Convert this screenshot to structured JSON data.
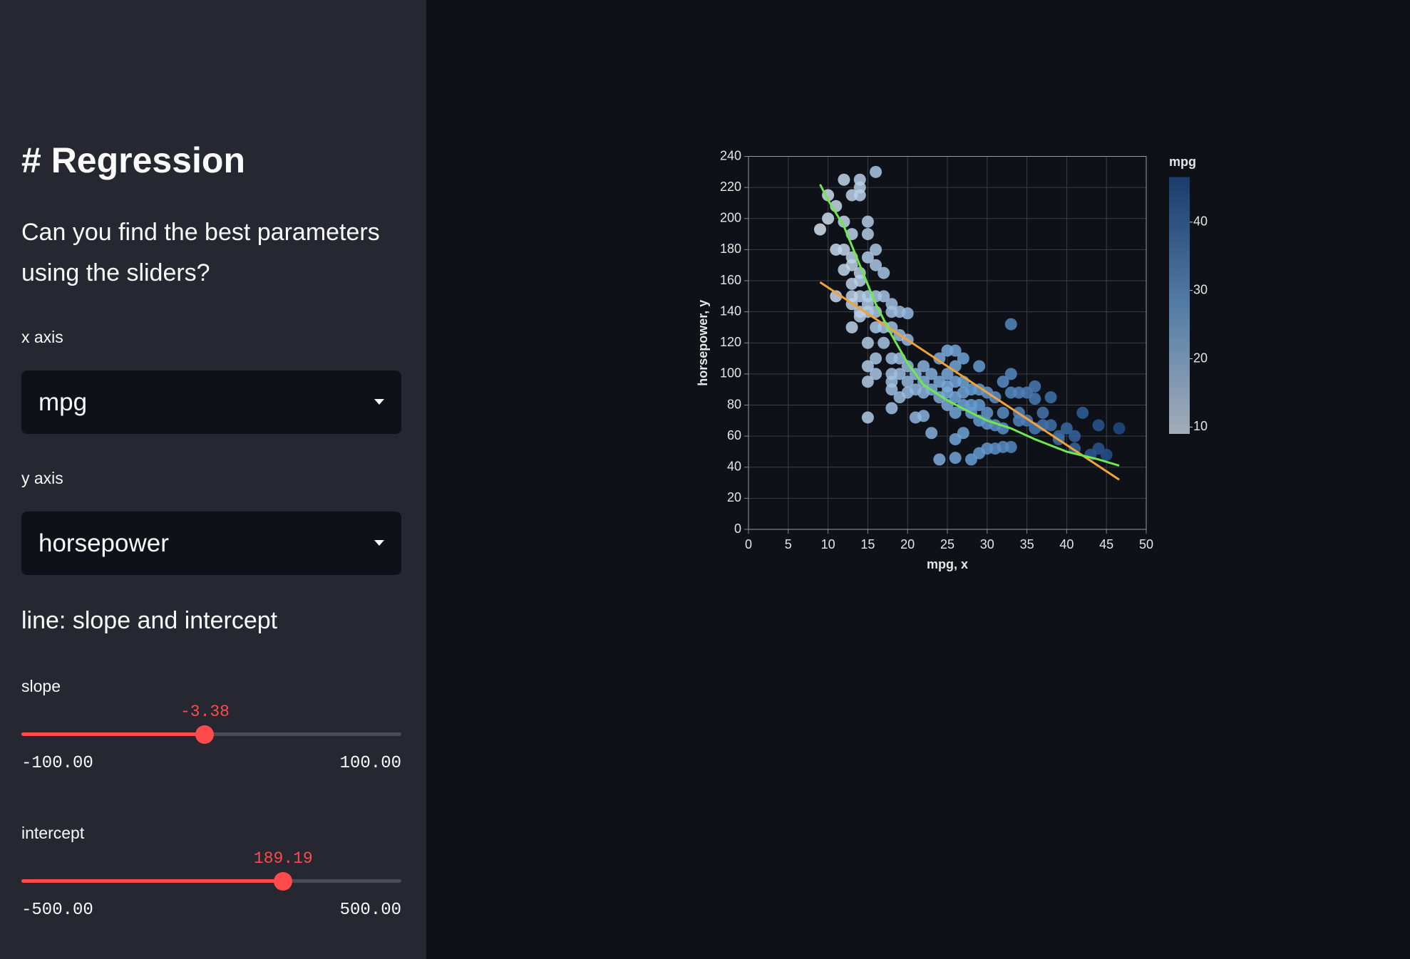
{
  "sidebar": {
    "title": "# Regression",
    "text": "Can you find the best parameters using the sliders?",
    "selects": [
      {
        "label": "x axis",
        "value": "mpg"
      },
      {
        "label": "y axis",
        "value": "horsepower"
      }
    ],
    "section": "line: slope and intercept",
    "sliders": [
      {
        "label": "slope",
        "value": -3.38,
        "min": {
          "value": -100,
          "label": "-100.00"
        },
        "max": {
          "value": 100,
          "label": "100.00"
        }
      },
      {
        "label": "intercept",
        "value": 189.19,
        "min": {
          "value": -500,
          "label": "-500.00"
        },
        "max": {
          "value": 500,
          "label": "500.00"
        }
      }
    ]
  },
  "chart_data": {
    "type": "scatter",
    "x_title": "mpg, x",
    "y_title": "horsepower, y",
    "xlim": [
      0,
      50
    ],
    "xticks": [
      0,
      5,
      10,
      15,
      20,
      25,
      30,
      35,
      40,
      45,
      50
    ],
    "ylim": [
      0,
      240
    ],
    "yticks": [
      0,
      20,
      40,
      60,
      80,
      100,
      120,
      140,
      160,
      180,
      200,
      220,
      240
    ],
    "grid": true,
    "color_scale": {
      "title": "mpg",
      "lim": [
        9,
        46.6
      ],
      "ticks": [
        10,
        20,
        30,
        40
      ],
      "colors": [
        "#d3e0ee",
        "#6aa0d6",
        "#1f4a86"
      ]
    },
    "series": [
      {
        "type": "scatter",
        "x": [
          9,
          10,
          10,
          11,
          12,
          11,
          12,
          12,
          13,
          13,
          14,
          14,
          14,
          16,
          15,
          15,
          13,
          14,
          14,
          13,
          12,
          13,
          14,
          15,
          16,
          16,
          16,
          17,
          15,
          15,
          13,
          13,
          14,
          15,
          16,
          17,
          18,
          18,
          19,
          20,
          11,
          13,
          14,
          16,
          17,
          18,
          19,
          20,
          15,
          16,
          15,
          16,
          15,
          15,
          17,
          18,
          18,
          18,
          19,
          19,
          20,
          20,
          20,
          18,
          19,
          18,
          21,
          21,
          22,
          22,
          22,
          23,
          23,
          24,
          24,
          24,
          25,
          25,
          25,
          25,
          25,
          26,
          26,
          26,
          26,
          26,
          27,
          27,
          27,
          27,
          28,
          28,
          28,
          29,
          29,
          29,
          29,
          30,
          30,
          30,
          31,
          31,
          32,
          32,
          32,
          33,
          33,
          33,
          33,
          34,
          34,
          34,
          35,
          35,
          36,
          36,
          36,
          37,
          37,
          38,
          38,
          39,
          39,
          40,
          41,
          41,
          42,
          43,
          44,
          44,
          45,
          46.6,
          22,
          21,
          23,
          24,
          26,
          27,
          28,
          30,
          32,
          26,
          29,
          31
        ],
        "values": [
          193,
          215,
          200,
          208,
          225,
          180,
          180,
          198,
          215,
          190,
          225,
          215,
          220,
          230,
          198,
          190,
          175,
          165,
          150,
          170,
          167,
          158,
          160,
          175,
          180,
          170,
          150,
          165,
          150,
          145,
          150,
          145,
          140,
          140,
          140,
          150,
          145,
          140,
          140,
          139,
          150,
          130,
          137,
          130,
          130,
          130,
          125,
          122,
          120,
          110,
          105,
          100,
          95,
          72,
          120,
          110,
          100,
          95,
          110,
          100,
          105,
          95,
          88,
          90,
          85,
          78,
          100,
          90,
          105,
          95,
          88,
          100,
          90,
          110,
          95,
          85,
          115,
          100,
          92,
          88,
          80,
          115,
          105,
          95,
          85,
          75,
          110,
          95,
          88,
          80,
          90,
          80,
          75,
          105,
          90,
          80,
          70,
          88,
          75,
          68,
          85,
          67,
          95,
          75,
          65,
          100,
          88,
          53,
          132,
          88,
          75,
          70,
          88,
          70,
          92,
          84,
          65,
          75,
          67,
          85,
          67,
          60,
          58,
          65,
          60,
          52,
          75,
          48,
          67,
          52,
          48,
          65,
          73,
          72,
          62,
          45,
          58,
          62,
          45,
          52,
          53,
          46,
          49,
          52
        ]
      },
      {
        "type": "line",
        "color": "#f2a23a",
        "x": [
          9,
          46.6
        ],
        "values": [
          159,
          32
        ]
      },
      {
        "type": "line",
        "color": "#6ee84e",
        "x": [
          9,
          10,
          12,
          14,
          16,
          18,
          20,
          22,
          25,
          28,
          30,
          33,
          36,
          40,
          44,
          46.6
        ],
        "values": [
          222,
          212,
          195,
          170,
          145,
          125,
          107,
          93,
          83,
          75,
          70,
          65,
          58,
          50,
          45,
          41
        ]
      }
    ]
  }
}
